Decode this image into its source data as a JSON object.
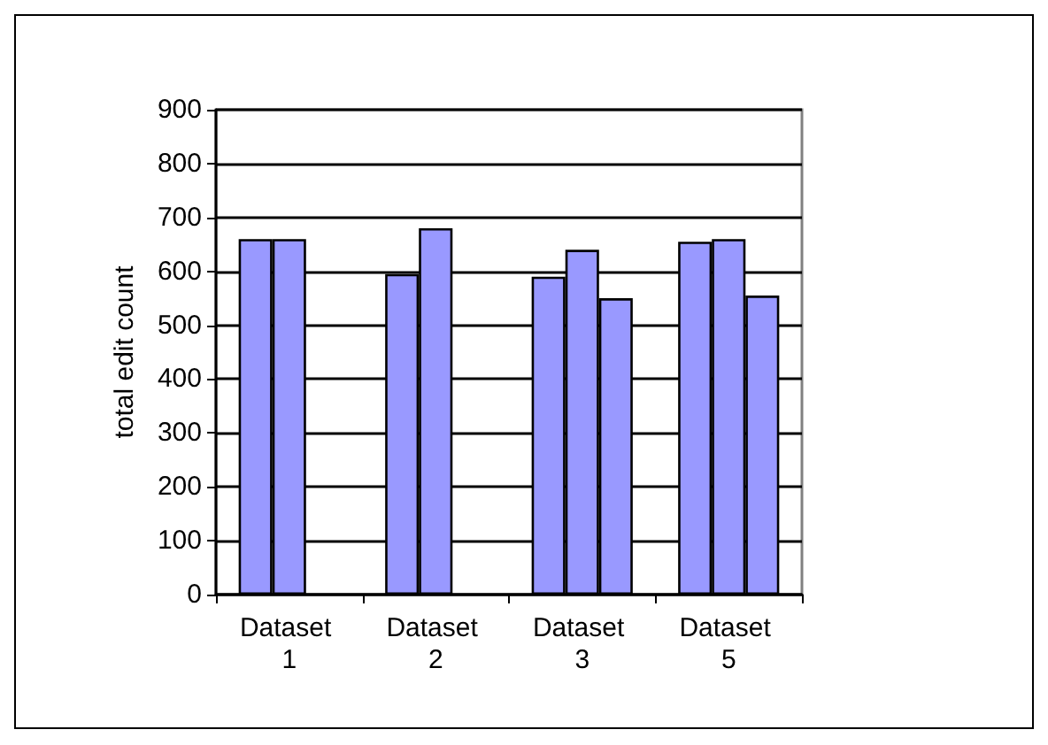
{
  "chart_data": {
    "type": "bar",
    "ylabel": "total edit count",
    "categories": [
      "Dataset 1",
      "Dataset 2",
      "Dataset 3",
      "Dataset 5"
    ],
    "series": [
      {
        "color": "#9999ff",
        "values": [
          660,
          595,
          590,
          655
        ]
      },
      {
        "color": "#9999ff",
        "values": [
          660,
          680,
          640,
          660
        ]
      },
      {
        "color": "#9999ff",
        "values": [
          null,
          null,
          550,
          555
        ]
      }
    ],
    "ylim": [
      0,
      900
    ],
    "yticks": [
      0,
      100,
      200,
      300,
      400,
      500,
      600,
      700,
      800,
      900
    ],
    "grid": "y"
  }
}
